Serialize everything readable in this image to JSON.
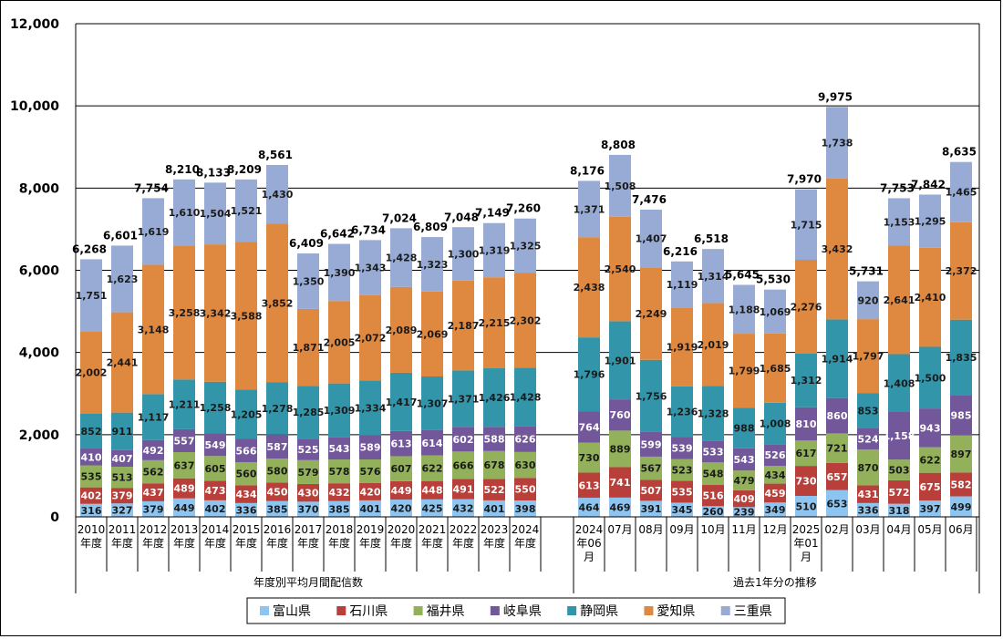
{
  "chart_data": {
    "type": "bar",
    "stacked": true,
    "ylim": [
      0,
      12000
    ],
    "yticks": [
      0,
      2000,
      4000,
      6000,
      8000,
      10000,
      12000
    ],
    "ytick_labels": [
      "0",
      "2,000",
      "4,000",
      "6,000",
      "8,000",
      "10,000",
      "12,000"
    ],
    "grid": true,
    "legend_position": "bottom",
    "categories": [
      "2010\n年度",
      "2011\n年度",
      "2012\n年度",
      "2013\n年度",
      "2014\n年度",
      "2015\n年度",
      "2016\n年度",
      "2017\n年度",
      "2018\n年度",
      "2019\n年度",
      "2020\n年度",
      "2021\n年度",
      "2022\n年度",
      "2023\n年度",
      "2024\n年度",
      "2024\n年06\n月",
      "07月",
      "08月",
      "09月",
      "10月",
      "11月",
      "12月",
      "2025\n年01\n月",
      "02月",
      "03月",
      "04月",
      "05月",
      "06月"
    ],
    "groups": [
      {
        "label": "年度別平均月間配信数",
        "start": 0,
        "count": 15
      },
      {
        "label": "過去1年分の推移",
        "start": 15,
        "count": 13
      }
    ],
    "series": [
      {
        "name": "富山県",
        "color": "#8EC5F0",
        "values": [
          316,
          327,
          379,
          449,
          402,
          336,
          385,
          370,
          385,
          401,
          420,
          425,
          432,
          401,
          398,
          464,
          469,
          391,
          345,
          260,
          239,
          349,
          510,
          653,
          336,
          318,
          397,
          499
        ]
      },
      {
        "name": "石川県",
        "color": "#B93F3A",
        "values": [
          402,
          379,
          437,
          489,
          473,
          434,
          450,
          430,
          432,
          420,
          449,
          448,
          491,
          522,
          550,
          613,
          741,
          507,
          535,
          516,
          409,
          459,
          730,
          657,
          431,
          572,
          675,
          582
        ]
      },
      {
        "name": "福井県",
        "color": "#93B15A",
        "values": [
          535,
          513,
          562,
          637,
          605,
          560,
          580,
          579,
          578,
          576,
          607,
          622,
          666,
          678,
          630,
          730,
          889,
          567,
          523,
          548,
          479,
          434,
          617,
          721,
          870,
          503,
          622,
          897
        ]
      },
      {
        "name": "岐阜県",
        "color": "#72589A",
        "values": [
          410,
          407,
          492,
          557,
          549,
          566,
          587,
          525,
          543,
          589,
          613,
          614,
          602,
          588,
          626,
          764,
          760,
          599,
          539,
          533,
          543,
          526,
          810,
          860,
          524,
          1158,
          943,
          985
        ]
      },
      {
        "name": "静岡県",
        "color": "#3295AA",
        "values": [
          852,
          911,
          1117,
          1211,
          1258,
          1205,
          1278,
          1285,
          1309,
          1334,
          1417,
          1307,
          1371,
          1426,
          1428,
          1796,
          1901,
          1756,
          1236,
          1328,
          988,
          1008,
          1312,
          1914,
          853,
          1408,
          1500,
          1835
        ]
      },
      {
        "name": "愛知県",
        "color": "#DE8840",
        "values": [
          2002,
          2441,
          3148,
          3258,
          3342,
          3588,
          3852,
          1871,
          2005,
          2072,
          2089,
          2069,
          2187,
          2215,
          2302,
          2438,
          2540,
          2249,
          1919,
          2019,
          1799,
          1685,
          2276,
          3432,
          1797,
          2641,
          2410,
          2372
        ]
      },
      {
        "name": "三重県",
        "color": "#98ABD4",
        "values": [
          1751,
          1623,
          1619,
          1610,
          1504,
          1521,
          1430,
          1350,
          1390,
          1343,
          1428,
          1323,
          1300,
          1319,
          1325,
          1371,
          1508,
          1407,
          1119,
          1314,
          1188,
          1069,
          1715,
          1738,
          920,
          1153,
          1295,
          1465
        ]
      }
    ],
    "totals": [
      6268,
      6601,
      7754,
      8210,
      8133,
      8209,
      8561,
      6409,
      6642,
      6734,
      7024,
      6809,
      7048,
      7149,
      7260,
      8176,
      8808,
      7476,
      6216,
      6518,
      5645,
      5530,
      7970,
      9975,
      5731,
      7753,
      7842,
      8635
    ]
  }
}
